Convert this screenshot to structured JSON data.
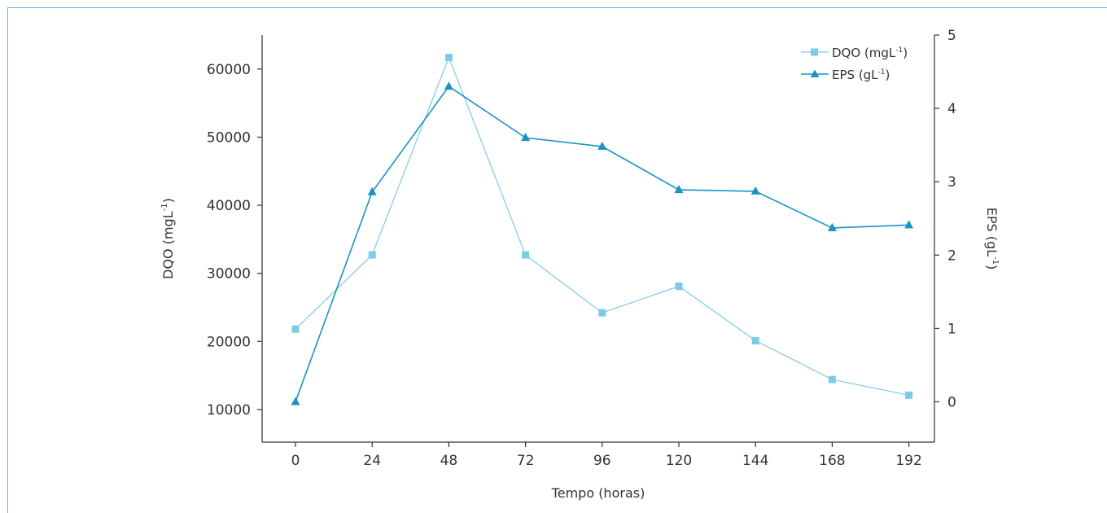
{
  "chart_data": {
    "type": "line",
    "title": "",
    "xlabel": "Tempo (horas)",
    "ylabel_left": "DQO (mgL",
    "ylabel_left_sup": "-1",
    "ylabel_left_close": ")",
    "ylabel_right": "EPS (gL",
    "ylabel_right_sup": "-1",
    "ylabel_right_close": ")",
    "x": [
      0,
      24,
      48,
      72,
      96,
      120,
      144,
      168,
      192
    ],
    "x_tick_labels": [
      "0",
      "24",
      "48",
      "72",
      "96",
      "120",
      "144",
      "168",
      "192"
    ],
    "y_left_range": [
      5200,
      65000
    ],
    "y_left_ticks": [
      10000,
      20000,
      30000,
      40000,
      50000,
      60000
    ],
    "y_right_range": [
      -0.55,
      5.0
    ],
    "y_right_ticks": [
      0,
      1,
      2,
      3,
      4,
      5
    ],
    "grid": false,
    "legend_position": "top-right",
    "series": [
      {
        "name": "DQO (mgL",
        "name_sup": "-1",
        "name_close": ")",
        "axis": "left",
        "marker": "square",
        "color": "#7ccbe6",
        "values": [
          21800,
          32700,
          61700,
          32700,
          24200,
          28100,
          20100,
          14400,
          12100
        ]
      },
      {
        "name": "EPS (gL",
        "name_sup": "-1",
        "name_close": ")",
        "axis": "right",
        "marker": "triangle",
        "color": "#1a93c4",
        "values": [
          0.0,
          2.86,
          4.3,
          3.6,
          3.48,
          2.89,
          2.87,
          2.37,
          2.41
        ]
      }
    ]
  }
}
